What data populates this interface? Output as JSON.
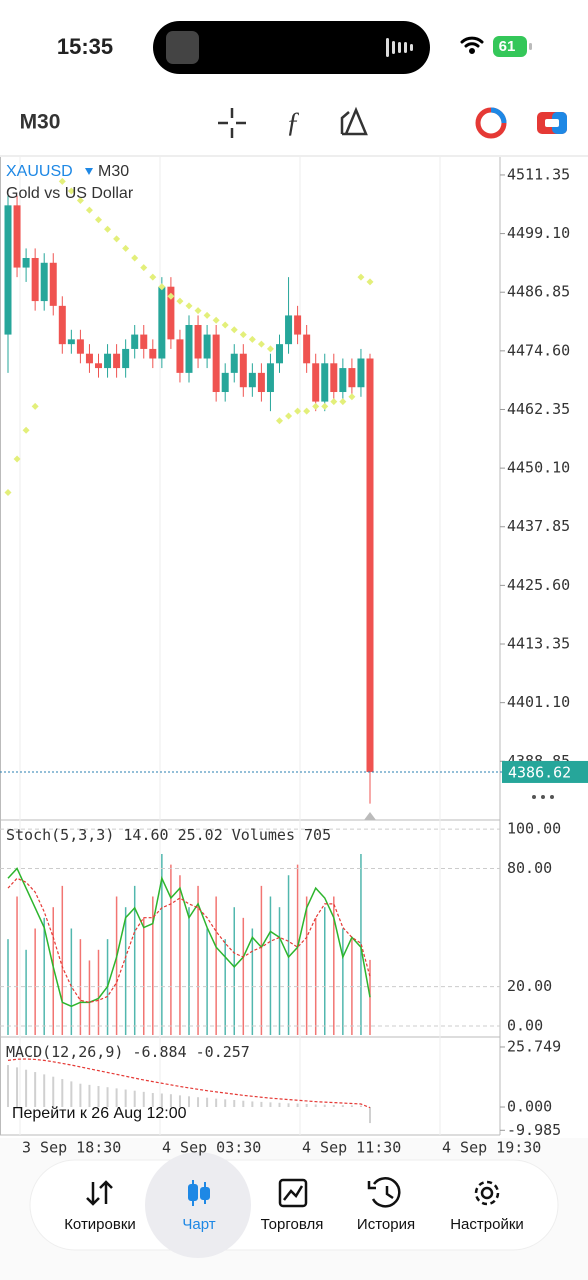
{
  "status_bar": {
    "time": "15:35",
    "battery": "61"
  },
  "toolbar": {
    "timeframe": "M30"
  },
  "chart_data": {
    "type": "candlestick",
    "symbol": "XAUUSD",
    "timeframe": "M30",
    "description": "Gold vs US Dollar",
    "x_labels": [
      "3 Sep 18:30",
      "4 Sep 03:30",
      "4 Sep 11:30",
      "4 Sep 19:30"
    ],
    "candles": [
      [
        4478,
        4507,
        4470,
        4505
      ],
      [
        4505,
        4507,
        4490,
        4492
      ],
      [
        4492,
        4496,
        4489,
        4494
      ],
      [
        4494,
        4496,
        4483,
        4485
      ],
      [
        4485,
        4495,
        4483,
        4493
      ],
      [
        4493,
        4495,
        4482,
        4484
      ],
      [
        4484,
        4486,
        4474,
        4476
      ],
      [
        4476,
        4479,
        4474,
        4477
      ],
      [
        4477,
        4479,
        4472,
        4474
      ],
      [
        4474,
        4476,
        4470,
        4472
      ],
      [
        4472,
        4474,
        4469,
        4471
      ],
      [
        4471,
        4476,
        4469,
        4474
      ],
      [
        4474,
        4476,
        4469,
        4471
      ],
      [
        4471,
        4477,
        4469,
        4475
      ],
      [
        4475,
        4480,
        4473,
        4478
      ],
      [
        4478,
        4480,
        4473,
        4475
      ],
      [
        4475,
        4477,
        4471,
        4473
      ],
      [
        4473,
        4490,
        4471,
        4488
      ],
      [
        4488,
        4490,
        4475,
        4477
      ],
      [
        4477,
        4479,
        4468,
        4470
      ],
      [
        4470,
        4482,
        4468,
        4480
      ],
      [
        4480,
        4482,
        4471,
        4473
      ],
      [
        4473,
        4480,
        4471,
        4478
      ],
      [
        4478,
        4480,
        4464,
        4466
      ],
      [
        4466,
        4472,
        4464,
        4470
      ],
      [
        4470,
        4476,
        4468,
        4474
      ],
      [
        4474,
        4476,
        4465,
        4467
      ],
      [
        4467,
        4472,
        4465,
        4470
      ],
      [
        4470,
        4472,
        4464,
        4466
      ],
      [
        4466,
        4474,
        4462,
        4472
      ],
      [
        4472,
        4478,
        4470,
        4476
      ],
      [
        4476,
        4490,
        4474,
        4482
      ],
      [
        4482,
        4484,
        4476,
        4478
      ],
      [
        4478,
        4480,
        4470,
        4472
      ],
      [
        4472,
        4474,
        4462,
        4464
      ],
      [
        4464,
        4474,
        4462,
        4472
      ],
      [
        4472,
        4474,
        4464,
        4466
      ],
      [
        4466,
        4473,
        4464,
        4471
      ],
      [
        4471,
        4473,
        4465,
        4467
      ],
      [
        4467,
        4475,
        4465,
        4473
      ],
      [
        4473,
        4474,
        4380,
        4386.62
      ]
    ],
    "sar": [
      4445,
      4452,
      4458,
      4463,
      null,
      null,
      4510,
      4508,
      4506,
      4504,
      4502,
      4500,
      4498,
      4496,
      4494,
      4492,
      4490,
      4488,
      4486,
      4485,
      4484,
      4483,
      4482,
      4481,
      4480,
      4479,
      4478,
      4477,
      4476,
      4475,
      4460,
      4461,
      4462,
      4462,
      4463,
      4463,
      4464,
      4464,
      4465,
      4490,
      4489
    ],
    "ylim": [
      4377,
      4515.1
    ],
    "yticks": [
      4511.35,
      {
        "value": 4499.1,
        "label": "4499.10"
      },
      4486.85,
      {
        "value": 4474.6,
        "label": "4474.60"
      },
      4462.35,
      {
        "value": 4450.1,
        "label": "4450.10"
      },
      4437.85,
      {
        "value": 4425.6,
        "label": "4425.60"
      },
      4413.35,
      {
        "value": 4401.1,
        "label": "4401.10"
      },
      4388.85
    ],
    "up_color": "#26a69a",
    "down_color": "#ef5350",
    "sar_color": "#e3ef7a",
    "stoch": {
      "name": "Stoch(5,3,3)",
      "readout": [
        "14.60",
        "25.02"
      ],
      "volumes_name": "Volumes",
      "k": [
        75,
        80,
        70,
        60,
        50,
        30,
        12,
        10,
        12,
        12,
        14,
        20,
        35,
        55,
        60,
        50,
        52,
        75,
        65,
        70,
        55,
        62,
        50,
        40,
        35,
        30,
        35,
        45,
        40,
        48,
        45,
        35,
        40,
        60,
        70,
        65,
        55,
        35,
        45,
        40,
        14.6
      ],
      "d": [
        70,
        75,
        73,
        68,
        58,
        45,
        30,
        20,
        13,
        12,
        13,
        15,
        22,
        35,
        48,
        55,
        55,
        60,
        62,
        65,
        62,
        60,
        55,
        48,
        42,
        37,
        35,
        38,
        40,
        43,
        45,
        43,
        40,
        45,
        55,
        62,
        62,
        50,
        45,
        42,
        25.02
      ],
      "volumes": [
        900,
        1300,
        800,
        1000,
        1100,
        1200,
        1400,
        1000,
        900,
        700,
        800,
        900,
        1300,
        1200,
        1400,
        1100,
        1300,
        1700,
        1600,
        1500,
        1200,
        1400,
        1000,
        1300,
        900,
        1200,
        1100,
        1000,
        1400,
        1300,
        1200,
        1500,
        1600,
        1300,
        1100,
        1200,
        1300,
        1000,
        900,
        1700,
        705
      ],
      "volume_lim": [
        0,
        2000
      ],
      "ylim": [
        -4.6,
        103.6
      ],
      "yticks": [
        {
          "value": 100,
          "label": "100.00"
        },
        {
          "value": 80,
          "label": "80.00"
        },
        {
          "value": 20,
          "label": "20.00"
        },
        {
          "value": 0,
          "label": "0.00"
        }
      ],
      "k_color": "#2db52d",
      "d_color": "#e53935"
    },
    "macd": {
      "name": "MACD(12,26,9)",
      "histogram": [
        18,
        17,
        16,
        15,
        14,
        13,
        12,
        11,
        10,
        9.5,
        9,
        8.5,
        8,
        7.5,
        7,
        6.5,
        6,
        5.8,
        5.5,
        5,
        4.6,
        4.2,
        4,
        3.6,
        3.3,
        3,
        2.7,
        2.4,
        2.2,
        2,
        1.8,
        1.6,
        1.5,
        1.3,
        1.1,
        1,
        0.9,
        0.8,
        0.7,
        0.6,
        -6.884
      ],
      "signal": [
        20,
        20.5,
        20.6,
        20.4,
        20,
        19.4,
        18.7,
        18,
        17.2,
        16.4,
        15.6,
        14.8,
        14,
        13.2,
        12.4,
        11.6,
        10.9,
        10.2,
        9.5,
        8.8,
        8.2,
        7.6,
        7,
        6.5,
        6,
        5.5,
        5,
        4.6,
        4.2,
        3.8,
        3.5,
        3.2,
        2.9,
        2.6,
        2.3,
        2.1,
        1.9,
        1.7,
        1.5,
        1.3,
        -0.257
      ],
      "ylim": [
        -12,
        29.6
      ],
      "yticks": [
        25.749,
        {
          "value": 0,
          "label": "0.000"
        },
        -9.985
      ],
      "signal_color": "#e53935"
    }
  },
  "goto": "Перейти к 26 Aug 12:00",
  "nav": [
    "Котировки",
    "Чарт",
    "Торговля",
    "История",
    "Настройки"
  ]
}
